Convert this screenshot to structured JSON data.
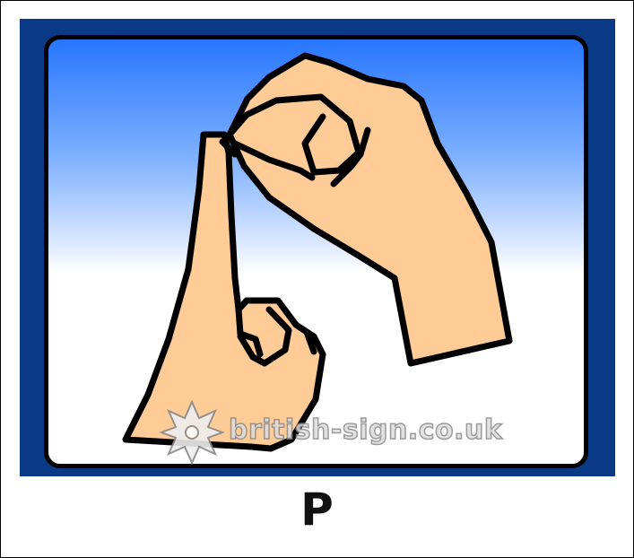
{
  "sign": {
    "letter": "P"
  },
  "watermark": {
    "text": "british-sign.co.uk"
  },
  "colors": {
    "frame_blue": "#0a3a86",
    "sky_top": "#2776ff",
    "skin": "#ffcb96",
    "outline": "#000000"
  },
  "icons": {
    "logo": "flower-logo-icon"
  }
}
